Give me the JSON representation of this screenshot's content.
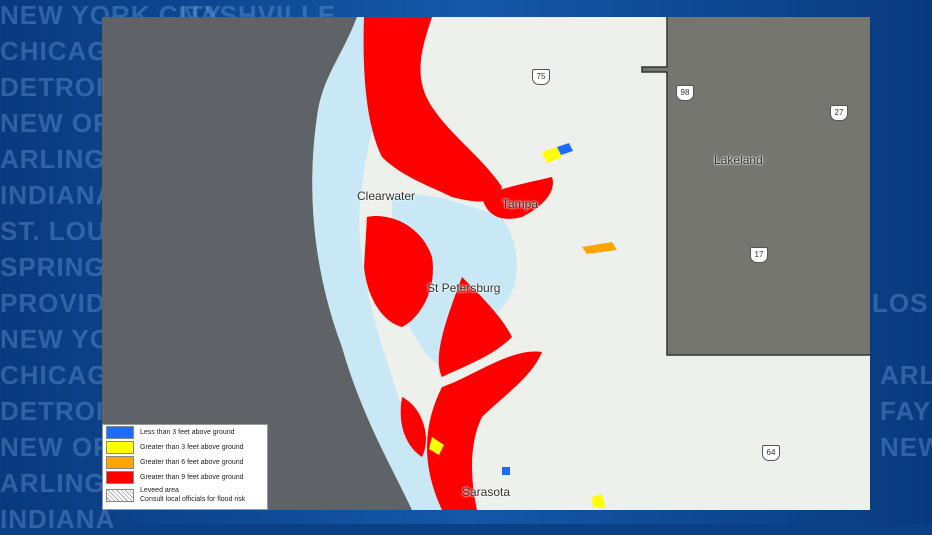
{
  "background_words": [
    "NEW YORK CITY",
    "NASHVILLE",
    "CHICAGO",
    "DETROIT",
    "NEW ORLEANS",
    "ARLINGTON",
    "INDIANA",
    "ST. LOUIS",
    "SPRINGFIELD",
    "PROVIDENCE",
    "NEW YORK",
    "CHICAGO",
    "DETROIT",
    "NEW ORLEANS",
    "ARLINGTON",
    "INDIANA",
    "LOS ANGELES",
    "ARLINGTON",
    "FAYETTEVILLE",
    "NEW ORLEANS"
  ],
  "map": {
    "cities": [
      "Clearwater",
      "Tampa",
      "St Petersburg",
      "Lakeland",
      "Sarasota"
    ],
    "highways": [
      "75",
      "98",
      "27",
      "17",
      "64"
    ],
    "colors": {
      "water": "#c9e8f5",
      "gulf": "#5f6368",
      "land": "#eef0ec",
      "overlay": "#6b6b66",
      "red": "#ff0000",
      "yellow": "#ffff00",
      "orange": "#ffa500",
      "blue": "#1e6cff"
    }
  },
  "legend": {
    "items": [
      {
        "label": "Less than 3 feet above ground",
        "color": "#1e6cff"
      },
      {
        "label": "Greater than 3 feet above ground",
        "color": "#ffff00"
      },
      {
        "label": "Greater than 6 feet above ground",
        "color": "#ffa500"
      },
      {
        "label": "Greater than 9 feet above ground",
        "color": "#ff0000"
      }
    ],
    "levee_label": "Leveed area",
    "levee_note": "Consult local officials for flood risk"
  }
}
